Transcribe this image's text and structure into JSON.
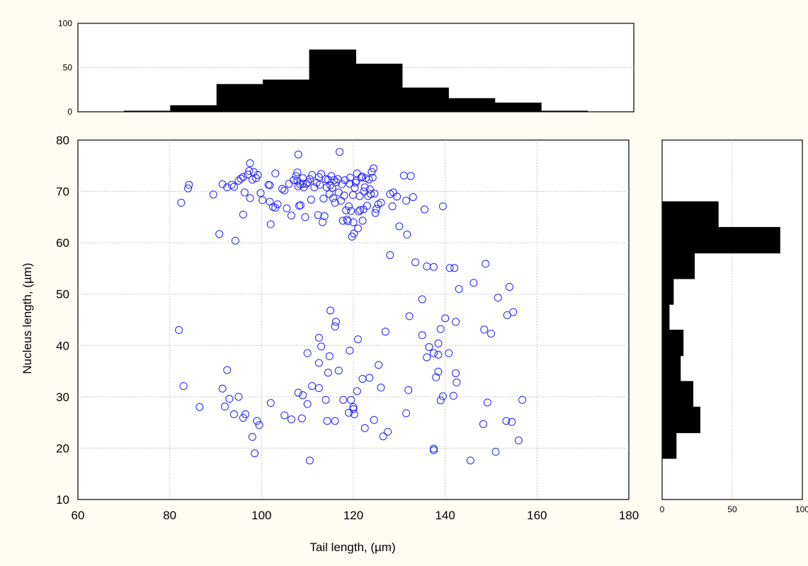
{
  "chart_data": {
    "type": "scatter",
    "xlabel": "Tail length, (µm)",
    "ylabel": "Nucleus length, (µm)",
    "xlim": [
      60,
      180
    ],
    "ylim": [
      10,
      80
    ],
    "xticks": [
      "60",
      "80",
      "100",
      "120",
      "140",
      "160",
      "180"
    ],
    "yticks": [
      "10",
      "20",
      "30",
      "40",
      "50",
      "60",
      "70",
      "80"
    ],
    "grid": true,
    "marker_color": "#2020ff",
    "points": [
      [
        82.5,
        67.8
      ],
      [
        84,
        70.6
      ],
      [
        84.2,
        71.3
      ],
      [
        89.5,
        69.4
      ],
      [
        91.5,
        71.4
      ],
      [
        92.5,
        70.8
      ],
      [
        94,
        70.9
      ],
      [
        95,
        72.1
      ],
      [
        95.5,
        72.5
      ],
      [
        96,
        72.8
      ],
      [
        96.3,
        69.8
      ],
      [
        97,
        73.3
      ],
      [
        97.3,
        74
      ],
      [
        97.5,
        75.5
      ],
      [
        98,
        72.3
      ],
      [
        98.3,
        73.8
      ],
      [
        98.8,
        72.6
      ],
      [
        99.2,
        73.2
      ],
      [
        97.5,
        68.7
      ],
      [
        99.8,
        69.7
      ],
      [
        100.2,
        68.3
      ],
      [
        101.5,
        71.3
      ],
      [
        101.8,
        68
      ],
      [
        102.5,
        67
      ],
      [
        103,
        73.5
      ],
      [
        103,
        66.8
      ],
      [
        103.5,
        67.5
      ],
      [
        104.5,
        70.5
      ],
      [
        105,
        70.2
      ],
      [
        105.5,
        66.7
      ],
      [
        106,
        71.5
      ],
      [
        106.5,
        65.3
      ],
      [
        107,
        72.2
      ],
      [
        107.5,
        73
      ],
      [
        107.8,
        73.7
      ],
      [
        108,
        71
      ],
      [
        108.2,
        67.2
      ],
      [
        108.4,
        71.4
      ],
      [
        108.5,
        67.3
      ],
      [
        109,
        72.6
      ],
      [
        109.2,
        70.8
      ],
      [
        109.5,
        65
      ],
      [
        109.8,
        71.5
      ],
      [
        110.1,
        71.8
      ],
      [
        110.5,
        72.4
      ],
      [
        110.8,
        68.4
      ],
      [
        111,
        73.2
      ],
      [
        111.5,
        70.8
      ],
      [
        112,
        71.7
      ],
      [
        112.3,
        65.4
      ],
      [
        112.5,
        72.8
      ],
      [
        112.7,
        71.3
      ],
      [
        113,
        73.4
      ],
      [
        113.3,
        64
      ],
      [
        113.5,
        68.6
      ],
      [
        113.7,
        65.2
      ],
      [
        114,
        72.4
      ],
      [
        114.2,
        70.8
      ],
      [
        114.5,
        72.3
      ],
      [
        114.8,
        69.5
      ],
      [
        115,
        71.2
      ],
      [
        115.2,
        73
      ],
      [
        115.4,
        70.7
      ],
      [
        115.6,
        68.7
      ],
      [
        115.8,
        72.2
      ],
      [
        116,
        67.8
      ],
      [
        116.3,
        71.8
      ],
      [
        116.6,
        72.4
      ],
      [
        116.8,
        69.8
      ],
      [
        117,
        77.7
      ],
      [
        117.3,
        68.2
      ],
      [
        117.5,
        71.4
      ],
      [
        117.7,
        64.3
      ],
      [
        118,
        69.2
      ],
      [
        118.2,
        72.2
      ],
      [
        118.4,
        66.3
      ],
      [
        118.6,
        64.5
      ],
      [
        118.8,
        64.2
      ],
      [
        119,
        67.1
      ],
      [
        119.2,
        71.5
      ],
      [
        119.3,
        72.7
      ],
      [
        119.5,
        66.2
      ],
      [
        119.7,
        61.2
      ],
      [
        119.9,
        69.3
      ],
      [
        120,
        64
      ],
      [
        120.1,
        61.8
      ],
      [
        120.3,
        70.7
      ],
      [
        120.5,
        71.7
      ],
      [
        120.7,
        72.1
      ],
      [
        120.8,
        73.5
      ],
      [
        121,
        62.8
      ],
      [
        121.2,
        66.1
      ],
      [
        121.4,
        69.1
      ],
      [
        121.5,
        66.4
      ],
      [
        121.7,
        72.7
      ],
      [
        121.9,
        72.9
      ],
      [
        122,
        64.3
      ],
      [
        122.2,
        66.5
      ],
      [
        122.3,
        70
      ],
      [
        122.5,
        70.8
      ],
      [
        122.7,
        72.6
      ],
      [
        123,
        67.2
      ],
      [
        123.2,
        69.1
      ],
      [
        123.4,
        72.3
      ],
      [
        123.6,
        70.4
      ],
      [
        123.8,
        69.5
      ],
      [
        124,
        73.8
      ],
      [
        124.2,
        72.7
      ],
      [
        124.4,
        74.5
      ],
      [
        124.6,
        69.6
      ],
      [
        124.8,
        65.8
      ],
      [
        125,
        66.6
      ],
      [
        125.4,
        67.5
      ],
      [
        126,
        67.8
      ],
      [
        128,
        69.5
      ],
      [
        128.5,
        67.1
      ],
      [
        128.7,
        69.8
      ],
      [
        129.5,
        69
      ],
      [
        130,
        63.2
      ],
      [
        131,
        73.1
      ],
      [
        131.5,
        68.2
      ],
      [
        131.7,
        61.6
      ],
      [
        132.5,
        73
      ],
      [
        133,
        68.9
      ],
      [
        135.5,
        66.5
      ],
      [
        139.5,
        67.1
      ],
      [
        108,
        77.2
      ],
      [
        107.8,
        72.1
      ],
      [
        93.5,
        71.3
      ],
      [
        90.8,
        61.7
      ],
      [
        94.3,
        60.4
      ],
      [
        102,
        63.6
      ],
      [
        96,
        65.5
      ],
      [
        101.8,
        71.2
      ],
      [
        109,
        71.5
      ],
      [
        128,
        57.6
      ],
      [
        133.5,
        56.2
      ],
      [
        136,
        55.4
      ],
      [
        137.5,
        55.3
      ],
      [
        141,
        55.1
      ],
      [
        142,
        55.1
      ],
      [
        148.8,
        55.9
      ],
      [
        146.2,
        52.2
      ],
      [
        154,
        51.4
      ],
      [
        143,
        51
      ],
      [
        151.5,
        49.3
      ],
      [
        135,
        49
      ],
      [
        154.8,
        46.5
      ],
      [
        153.5,
        45.9
      ],
      [
        132.2,
        45.7
      ],
      [
        140,
        45.3
      ],
      [
        142.3,
        44.6
      ],
      [
        148.5,
        43.1
      ],
      [
        150,
        42.3
      ],
      [
        135,
        42
      ],
      [
        127,
        42.7
      ],
      [
        115,
        46.8
      ],
      [
        116.2,
        44.6
      ],
      [
        116,
        43.7
      ],
      [
        112.5,
        41.5
      ],
      [
        113,
        39.8
      ],
      [
        110,
        38.5
      ],
      [
        114.8,
        37.9
      ],
      [
        112.5,
        36.6
      ],
      [
        121,
        41.2
      ],
      [
        119.2,
        39
      ],
      [
        136.5,
        39.7
      ],
      [
        138.5,
        40.4
      ],
      [
        139,
        43.2
      ],
      [
        140.8,
        38.5
      ],
      [
        137.5,
        38.5
      ],
      [
        138.5,
        38.2
      ],
      [
        136,
        37.7
      ],
      [
        114.5,
        34.7
      ],
      [
        116.8,
        35.1
      ],
      [
        125.5,
        36.2
      ],
      [
        122,
        33.5
      ],
      [
        123.5,
        33.7
      ],
      [
        119.5,
        29.4
      ],
      [
        138.5,
        34.9
      ],
      [
        142.3,
        34.6
      ],
      [
        142.5,
        32.8
      ],
      [
        138,
        33.8
      ],
      [
        92.5,
        35.2
      ],
      [
        83,
        32.1
      ],
      [
        91.5,
        31.6
      ],
      [
        111,
        32.1
      ],
      [
        112.5,
        31.7
      ],
      [
        120.8,
        31.1
      ],
      [
        126,
        31.8
      ],
      [
        132,
        31.3
      ],
      [
        139.5,
        30.1
      ],
      [
        141.8,
        30.2
      ],
      [
        139,
        29.3
      ],
      [
        149.2,
        28.9
      ],
      [
        156.8,
        29.4
      ],
      [
        86.5,
        28
      ],
      [
        92,
        28.1
      ],
      [
        93,
        29.6
      ],
      [
        95,
        30
      ],
      [
        102,
        28.8
      ],
      [
        108,
        30.8
      ],
      [
        109,
        30.3
      ],
      [
        110,
        28.6
      ],
      [
        114,
        29.4
      ],
      [
        117.8,
        29.4
      ],
      [
        120,
        28
      ],
      [
        120,
        27.6
      ],
      [
        119,
        26.9
      ],
      [
        120.2,
        26.6
      ],
      [
        122.5,
        23.9
      ],
      [
        124.5,
        25.5
      ],
      [
        131.5,
        26.8
      ],
      [
        94,
        26.6
      ],
      [
        96.5,
        26.6
      ],
      [
        96,
        25.9
      ],
      [
        99,
        25.3
      ],
      [
        99.5,
        24.5
      ],
      [
        105,
        26.4
      ],
      [
        106.5,
        25.6
      ],
      [
        108.8,
        25.8
      ],
      [
        114.3,
        25.3
      ],
      [
        116,
        25.3
      ],
      [
        148.3,
        24.7
      ],
      [
        153.3,
        25.3
      ],
      [
        154.5,
        25.1
      ],
      [
        127.5,
        23.2
      ],
      [
        126.5,
        22.3
      ],
      [
        98,
        22.2
      ],
      [
        98.5,
        19
      ],
      [
        137.5,
        19.9
      ],
      [
        137.5,
        19.6
      ],
      [
        151,
        19.3
      ],
      [
        156,
        21.5
      ],
      [
        110.5,
        17.6
      ],
      [
        145.5,
        17.6
      ],
      [
        82,
        43
      ]
    ],
    "top_histogram": {
      "yticks": [
        "0",
        "50",
        "100"
      ],
      "ylim": [
        0,
        100
      ],
      "bin_edges": [
        70,
        80,
        90,
        100,
        110,
        120,
        130,
        140,
        150,
        160,
        170
      ],
      "counts": [
        0,
        7,
        31,
        36,
        70,
        54,
        27,
        15,
        10,
        0
      ]
    },
    "right_histogram": {
      "xticks": [
        "0",
        "50",
        "100"
      ],
      "xlim": [
        0,
        100
      ],
      "bin_edges": [
        18,
        23,
        28,
        33,
        38,
        43,
        48,
        53,
        58,
        63,
        68,
        73
      ],
      "counts": [
        10,
        27,
        22,
        13,
        15,
        5,
        8,
        23,
        84,
        40,
        0
      ]
    }
  }
}
